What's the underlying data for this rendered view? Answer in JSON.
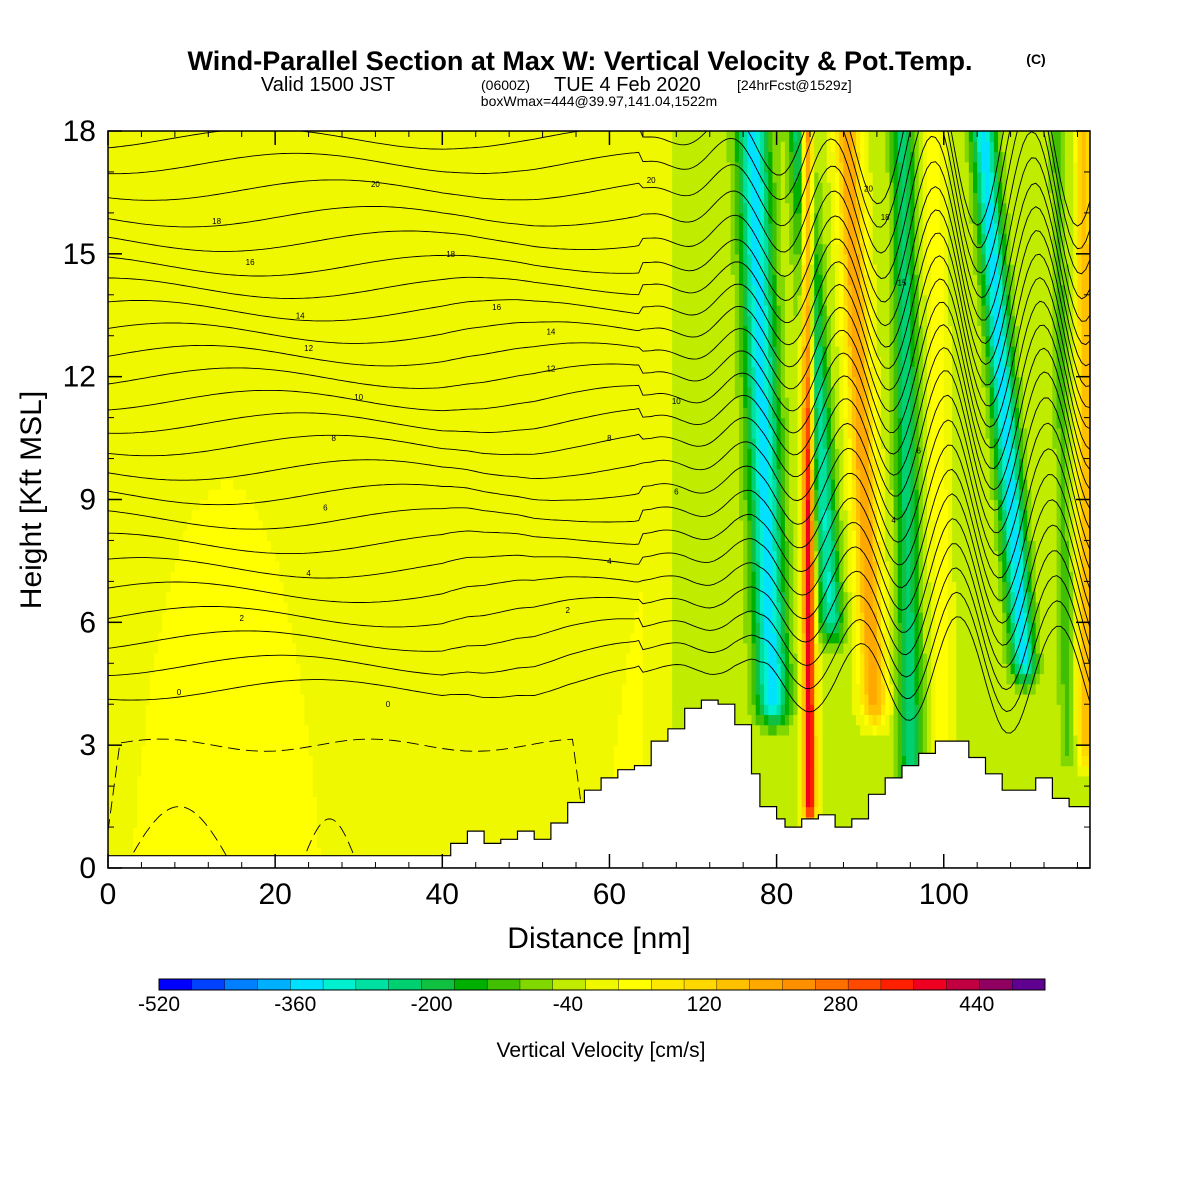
{
  "title": {
    "main": "Wind-Parallel Section at Max W: Vertical Velocity & Pot.Temp.",
    "copyright": "(C)",
    "valid_prefix": "Valid 1500 JST",
    "valid_zulu": "(0600Z)",
    "valid_date": "TUE 4 Feb 2020",
    "forecast": "[24hrFcst@1529z]",
    "box_info": "boxWmax=444@39.97,141.04,1522m"
  },
  "chart_data": {
    "type": "heatmap",
    "xlabel": "Distance [nm]",
    "ylabel": "Height [Kft MSL]",
    "xlim": [
      0,
      117.5
    ],
    "ylim": [
      0,
      18
    ],
    "x_ticks": [
      0,
      20,
      40,
      60,
      80,
      100
    ],
    "y_ticks": [
      0,
      3,
      6,
      9,
      12,
      15,
      18
    ],
    "colorbar": {
      "label": "Vertical Velocity [cm/s]",
      "min": -520,
      "max": 520,
      "step": 40,
      "tick_labels": [
        -520,
        -360,
        -200,
        -40,
        120,
        280,
        440
      ],
      "colors": [
        "#0000ff",
        "#0040ff",
        "#0080ff",
        "#00b0ff",
        "#00e0ff",
        "#00f0d0",
        "#00e0a0",
        "#00d070",
        "#10c040",
        "#00b000",
        "#40c000",
        "#80d800",
        "#c0ec00",
        "#f0f800",
        "#ffff00",
        "#ffe800",
        "#ffd800",
        "#ffc000",
        "#ffa800",
        "#ff9000",
        "#ff7000",
        "#ff4800",
        "#ff2000",
        "#f00020",
        "#c00040",
        "#900060",
        "#600090"
      ]
    },
    "w_field": {
      "background_cm_s": 10,
      "bands": [
        {
          "x_at_0": 80.2,
          "slope_nm_per_kft": -0.17,
          "width_nm": 4.2,
          "peak_cm_s": -320,
          "z_range_kft": [
            4,
            18
          ]
        },
        {
          "x_at_0": 84.0,
          "slope_nm_per_kft": -0.02,
          "width_nm": 1.6,
          "peak_cm_s": 440,
          "z_range_kft": [
            1.5,
            18
          ]
        },
        {
          "x_at_0": 88.3,
          "slope_nm_per_kft": -0.3,
          "width_nm": 3.0,
          "peak_cm_s": -260,
          "z_range_kft": [
            6,
            18
          ]
        },
        {
          "x_at_0": 92.6,
          "slope_nm_per_kft": -0.23,
          "width_nm": 3.2,
          "peak_cm_s": 240,
          "z_range_kft": [
            4,
            18
          ]
        },
        {
          "x_at_0": 96.2,
          "slope_nm_per_kft": -0.06,
          "width_nm": 3.0,
          "peak_cm_s": -200,
          "z_range_kft": [
            2,
            18
          ]
        },
        {
          "x_at_0": 100.2,
          "slope_nm_per_kft": -0.08,
          "width_nm": 2.5,
          "peak_cm_s": 80,
          "z_range_kft": [
            2,
            18
          ]
        },
        {
          "x_at_0": 111.4,
          "slope_nm_per_kft": -0.37,
          "width_nm": 3.2,
          "peak_cm_s": -320,
          "z_range_kft": [
            5,
            18
          ]
        },
        {
          "x_at_0": 117.0,
          "slope_nm_per_kft": -0.01,
          "width_nm": 2.0,
          "peak_cm_s": 200,
          "z_range_kft": [
            3,
            18
          ]
        },
        {
          "x_at_0": 115.0,
          "slope_nm_per_kft": -0.08,
          "width_nm": 2.0,
          "peak_cm_s": -80,
          "z_range_kft": [
            3,
            18
          ]
        }
      ]
    },
    "terrain": {
      "x_nm": [
        0,
        40,
        41,
        43,
        45,
        47,
        49,
        51,
        53,
        55,
        57,
        59,
        61,
        63,
        65,
        67,
        69,
        71,
        73,
        75,
        77,
        78,
        79,
        80,
        81,
        82,
        83,
        85,
        87,
        89,
        91,
        93,
        95,
        97,
        99,
        101,
        103,
        105,
        107,
        109,
        111,
        113,
        115,
        117.5
      ],
      "height_kft": [
        0.3,
        0.3,
        0.6,
        0.9,
        0.6,
        0.7,
        0.9,
        0.7,
        1.1,
        1.6,
        1.9,
        2.2,
        2.4,
        2.5,
        3.1,
        3.4,
        3.9,
        4.1,
        4.0,
        3.5,
        2.3,
        1.5,
        1.5,
        1.2,
        1.0,
        1.0,
        1.2,
        1.3,
        1.0,
        1.2,
        1.8,
        2.2,
        2.5,
        2.8,
        3.1,
        3.1,
        2.7,
        2.3,
        1.9,
        1.9,
        2.2,
        1.7,
        1.5,
        1.3
      ]
    },
    "theta_contours": {
      "levels_degC": [
        0,
        2,
        4,
        6,
        8,
        10,
        12,
        14,
        16,
        18,
        20
      ],
      "intermediate_lines_per_level": 1,
      "label_steps": [
        "0",
        "2",
        "4",
        "6",
        "8",
        "10",
        "12",
        "14",
        "15",
        "16",
        "18",
        "20"
      ],
      "left_heights_kft": [
        4.3,
        5.5,
        6.7,
        7.9,
        9.1,
        10.3,
        11.4,
        12.5,
        13.6,
        14.7,
        15.9,
        17.2
      ],
      "labels": [
        {
          "text": "0",
          "x": 8.5,
          "z": 4.3
        },
        {
          "text": "0",
          "x": 33.5,
          "z": 4.0
        },
        {
          "text": "2",
          "x": 16,
          "z": 6.1
        },
        {
          "text": "2",
          "x": 55,
          "z": 6.3
        },
        {
          "text": "4",
          "x": 24,
          "z": 7.2
        },
        {
          "text": "4",
          "x": 60,
          "z": 7.5
        },
        {
          "text": "4",
          "x": 94,
          "z": 8.5
        },
        {
          "text": "6",
          "x": 26,
          "z": 8.8
        },
        {
          "text": "6",
          "x": 68,
          "z": 9.2
        },
        {
          "text": "6",
          "x": 97,
          "z": 10.2
        },
        {
          "text": "8",
          "x": 27,
          "z": 10.5
        },
        {
          "text": "8",
          "x": 60,
          "z": 10.5
        },
        {
          "text": "10",
          "x": 30,
          "z": 11.5
        },
        {
          "text": "10",
          "x": 68,
          "z": 11.4
        },
        {
          "text": "12",
          "x": 24,
          "z": 12.7
        },
        {
          "text": "12",
          "x": 53,
          "z": 12.2
        },
        {
          "text": "14",
          "x": 23,
          "z": 13.5
        },
        {
          "text": "14",
          "x": 53,
          "z": 13.1
        },
        {
          "text": "15",
          "x": 95,
          "z": 14.3
        },
        {
          "text": "16",
          "x": 17,
          "z": 14.8
        },
        {
          "text": "16",
          "x": 46.5,
          "z": 13.7
        },
        {
          "text": "18",
          "x": 13,
          "z": 15.8
        },
        {
          "text": "18",
          "x": 41,
          "z": 15.0
        },
        {
          "text": "18",
          "x": 93,
          "z": 15.9
        },
        {
          "text": "20",
          "x": 32,
          "z": 16.7
        },
        {
          "text": "20",
          "x": 65,
          "z": 16.8
        },
        {
          "text": "20",
          "x": 91,
          "z": 16.6
        }
      ]
    },
    "negative_w_dashed": [
      {
        "x_range": [
          0,
          57
        ],
        "z_top_kft": 3.0
      },
      {
        "x_range": [
          2,
          15
        ],
        "z_top_kft": 1.5
      },
      {
        "x_range": [
          23,
          30
        ],
        "z_top_kft": 1.2
      }
    ]
  }
}
